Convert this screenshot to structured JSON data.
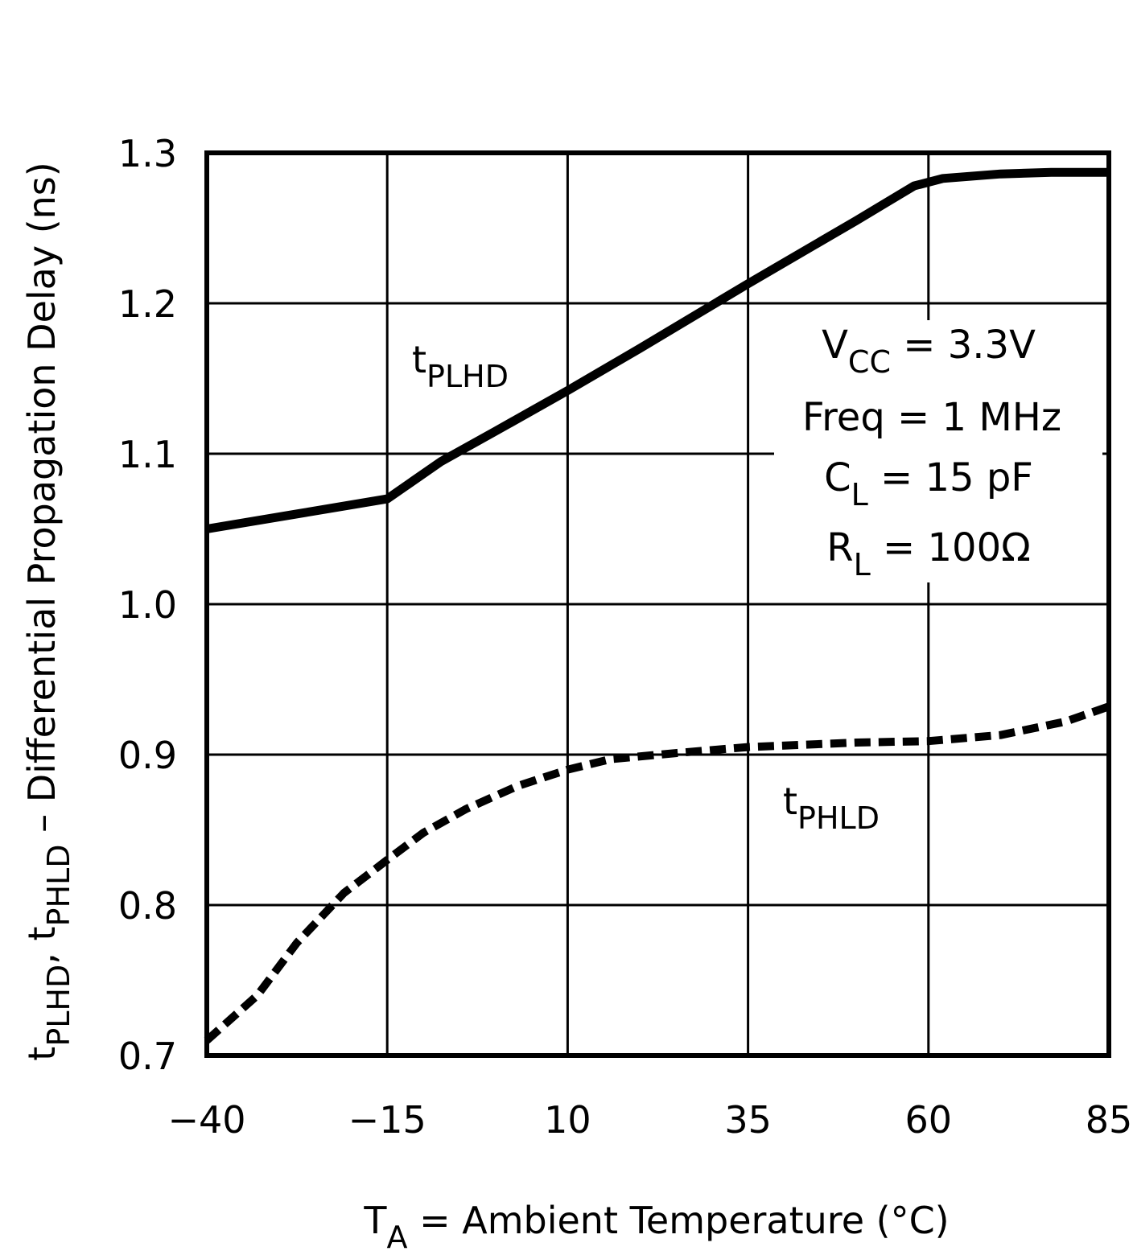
{
  "chart_data": {
    "type": "line",
    "xlabel": {
      "main": "T",
      "sub": "A",
      "rest": " = Ambient Temperature (°C)"
    },
    "ylabel": {
      "t1": "t",
      "s1": "PLHD",
      "mid": ", t",
      "s2": "PHLD",
      "rest": " – Differential Propagation Delay (ns)"
    },
    "xlim": [
      -40,
      85
    ],
    "ylim": [
      0.7,
      1.3
    ],
    "xticks": [
      -40,
      -15,
      10,
      35,
      60,
      85
    ],
    "xtick_labels": [
      "−40",
      "−15",
      "10",
      "35",
      "60",
      "85"
    ],
    "yticks": [
      0.7,
      0.8,
      0.9,
      1.0,
      1.1,
      1.2,
      1.3
    ],
    "ytick_labels": [
      "0.7",
      "0.8",
      "0.9",
      "1.0",
      "1.1",
      "1.2",
      "1.3"
    ],
    "grid": true,
    "series": [
      {
        "name": "tPLHD",
        "label": {
          "t": "t",
          "sub": "PLHD"
        },
        "style": "solid",
        "x": [
          -40,
          -27.5,
          -15,
          -7.5,
          0,
          10,
          20,
          35,
          50,
          58,
          62,
          70,
          77,
          85
        ],
        "y": [
          1.05,
          1.06,
          1.07,
          1.095,
          1.115,
          1.142,
          1.17,
          1.213,
          1.255,
          1.278,
          1.283,
          1.286,
          1.287,
          1.287
        ]
      },
      {
        "name": "tPHLD",
        "label": {
          "t": "t",
          "sub": "PHLD"
        },
        "style": "dashed",
        "x": [
          -40,
          -33,
          -27.5,
          -21,
          -15,
          -10,
          -4,
          3,
          10,
          16,
          25,
          35,
          50,
          60,
          70,
          79,
          85
        ],
        "y": [
          0.71,
          0.74,
          0.775,
          0.808,
          0.83,
          0.848,
          0.864,
          0.879,
          0.89,
          0.897,
          0.901,
          0.905,
          0.908,
          0.909,
          0.913,
          0.922,
          0.932
        ]
      }
    ],
    "annotations": [
      {
        "main": "V",
        "sub": "CC",
        "rest": " = 3.3V"
      },
      {
        "main": "Freq = 1 MHz",
        "sub": "",
        "rest": ""
      },
      {
        "main": "C",
        "sub": "L",
        "rest": " = 15 pF"
      },
      {
        "main": "R",
        "sub": "L",
        "rest": " = 100Ω"
      }
    ]
  }
}
